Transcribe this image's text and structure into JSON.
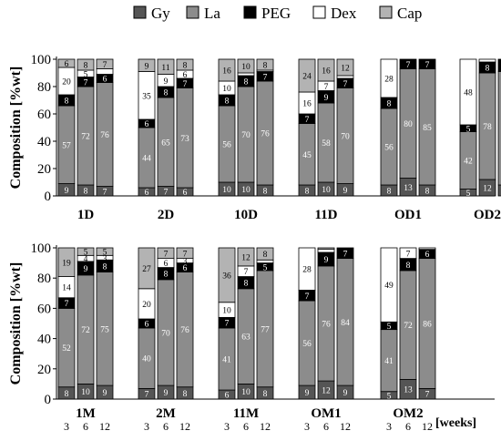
{
  "legend": [
    {
      "label": "Gy",
      "color": "#555555"
    },
    {
      "label": "La",
      "color": "#8c8c8c"
    },
    {
      "label": "PEG",
      "color": "#000000"
    },
    {
      "label": "Dex",
      "color": "#ffffff"
    },
    {
      "label": "Cap",
      "color": "#b3b3b3"
    }
  ],
  "weeks_label": "[weeks]",
  "week_ticks": [
    "3",
    "6",
    "12"
  ],
  "chart_data": [
    {
      "type": "bar",
      "stacked": true,
      "ylabel": "Composition  [%wt]",
      "ylim": [
        0,
        100
      ],
      "yticks": [
        0,
        20,
        40,
        60,
        80,
        100
      ],
      "series_order": [
        "Gy",
        "La",
        "PEG",
        "Dex",
        "Cap"
      ],
      "groups": [
        {
          "label": "1D",
          "bars": [
            {
              "week": "3",
              "values": [
                9,
                57,
                8,
                20,
                6
              ],
              "labels": [
                "9",
                "57",
                "8",
                "20",
                "6"
              ]
            },
            {
              "week": "6",
              "values": [
                8,
                72,
                7,
                5,
                8
              ],
              "labels": [
                "8",
                "72",
                "7",
                "5",
                "8"
              ]
            },
            {
              "week": "12",
              "values": [
                7,
                76,
                6,
                4,
                7
              ],
              "labels": [
                "7",
                "76",
                "6",
                "",
                "7"
              ]
            }
          ]
        },
        {
          "label": "2D",
          "bars": [
            {
              "week": "3",
              "values": [
                6,
                44,
                6,
                35,
                9
              ],
              "labels": [
                "6",
                "44",
                "6",
                "35",
                "9"
              ]
            },
            {
              "week": "6",
              "values": [
                7,
                65,
                8,
                9,
                11
              ],
              "labels": [
                "7",
                "65",
                "8",
                "9",
                "11"
              ]
            },
            {
              "week": "12",
              "values": [
                6,
                73,
                7,
                6,
                8
              ],
              "labels": [
                "6",
                "73",
                "7",
                "6",
                "8"
              ]
            }
          ]
        },
        {
          "label": "10D",
          "bars": [
            {
              "week": "3",
              "values": [
                10,
                56,
                8,
                10,
                16
              ],
              "labels": [
                "10",
                "56",
                "8",
                "10",
                "16"
              ]
            },
            {
              "week": "6",
              "values": [
                10,
                70,
                8,
                2,
                10
              ],
              "labels": [
                "10",
                "70",
                "8",
                "",
                "10"
              ]
            },
            {
              "week": "12",
              "values": [
                8,
                76,
                7,
                1,
                8
              ],
              "labels": [
                "8",
                "76",
                "7",
                "",
                "8"
              ]
            }
          ]
        },
        {
          "label": "11D",
          "bars": [
            {
              "week": "3",
              "values": [
                8,
                45,
                7,
                16,
                24
              ],
              "labels": [
                "8",
                "45",
                "7",
                "16",
                "24"
              ]
            },
            {
              "week": "6",
              "values": [
                10,
                58,
                9,
                7,
                16
              ],
              "labels": [
                "10",
                "58",
                "9",
                "7",
                "16"
              ]
            },
            {
              "week": "12",
              "values": [
                9,
                70,
                7,
                2,
                12
              ],
              "labels": [
                "9",
                "70",
                "7",
                "",
                "12"
              ]
            }
          ]
        },
        {
          "label": "OD1",
          "bars": [
            {
              "week": "3",
              "values": [
                8,
                56,
                8,
                28,
                0
              ],
              "labels": [
                "8",
                "56",
                "8",
                "28",
                ""
              ]
            },
            {
              "week": "6",
              "values": [
                13,
                80,
                7,
                0,
                0
              ],
              "labels": [
                "13",
                "80",
                "7",
                "",
                ""
              ]
            },
            {
              "week": "12",
              "values": [
                8,
                85,
                7,
                0,
                0
              ],
              "labels": [
                "8",
                "85",
                "7",
                "",
                ""
              ]
            }
          ]
        },
        {
          "label": "OD2",
          "bars": [
            {
              "week": "3",
              "values": [
                5,
                42,
                5,
                48,
                0
              ],
              "labels": [
                "5",
                "42",
                "5",
                "48",
                ""
              ]
            },
            {
              "week": "6",
              "values": [
                12,
                78,
                8,
                2,
                0
              ],
              "labels": [
                "12",
                "78",
                "8",
                "",
                ""
              ]
            },
            {
              "week": "12",
              "values": [
                8,
                83,
                9,
                0,
                0
              ],
              "labels": [
                "8",
                "83",
                "",
                "",
                ""
              ]
            }
          ]
        }
      ]
    },
    {
      "type": "bar",
      "stacked": true,
      "ylabel": "Composition  [%wt]",
      "ylim": [
        0,
        100
      ],
      "yticks": [
        0,
        20,
        40,
        60,
        80,
        100
      ],
      "series_order": [
        "Gy",
        "La",
        "PEG",
        "Dex",
        "Cap"
      ],
      "groups": [
        {
          "label": "1M",
          "bars": [
            {
              "week": "3",
              "values": [
                8,
                52,
                7,
                14,
                19
              ],
              "labels": [
                "8",
                "52",
                "7",
                "14",
                "19"
              ]
            },
            {
              "week": "6",
              "values": [
                10,
                72,
                9,
                4,
                5
              ],
              "labels": [
                "10",
                "72",
                "9",
                "4",
                "5"
              ]
            },
            {
              "week": "12",
              "values": [
                9,
                75,
                8,
                3,
                5
              ],
              "labels": [
                "9",
                "75",
                "8",
                "3",
                "5"
              ]
            }
          ]
        },
        {
          "label": "2M",
          "bars": [
            {
              "week": "3",
              "values": [
                7,
                40,
                6,
                20,
                27
              ],
              "labels": [
                "7",
                "40",
                "6",
                "20",
                "27"
              ]
            },
            {
              "week": "6",
              "values": [
                9,
                70,
                8,
                6,
                7
              ],
              "labels": [
                "9",
                "70",
                "8",
                "6",
                "7"
              ]
            },
            {
              "week": "12",
              "values": [
                8,
                76,
                6,
                3,
                7
              ],
              "labels": [
                "8",
                "76",
                "6",
                "3",
                "7"
              ]
            }
          ]
        },
        {
          "label": "11M",
          "bars": [
            {
              "week": "3",
              "values": [
                6,
                41,
                7,
                10,
                36
              ],
              "labels": [
                "6",
                "41",
                "7",
                "10",
                "36"
              ]
            },
            {
              "week": "6",
              "values": [
                10,
                63,
                8,
                7,
                12
              ],
              "labels": [
                "10",
                "63",
                "8",
                "7",
                "12"
              ]
            },
            {
              "week": "12",
              "values": [
                8,
                77,
                5,
                2,
                8
              ],
              "labels": [
                "8",
                "77",
                "5",
                "",
                "8"
              ]
            }
          ]
        },
        {
          "label": "OM1",
          "bars": [
            {
              "week": "3",
              "values": [
                9,
                56,
                7,
                28,
                0
              ],
              "labels": [
                "9",
                "56",
                "7",
                "28",
                ""
              ]
            },
            {
              "week": "6",
              "values": [
                12,
                76,
                9,
                2,
                1
              ],
              "labels": [
                "12",
                "76",
                "9",
                "",
                ""
              ]
            },
            {
              "week": "12",
              "values": [
                9,
                84,
                7,
                0,
                0
              ],
              "labels": [
                "9",
                "84",
                "7",
                "",
                ""
              ]
            }
          ]
        },
        {
          "label": "OM2",
          "bars": [
            {
              "week": "3",
              "values": [
                5,
                41,
                5,
                49,
                0
              ],
              "labels": [
                "5",
                "41",
                "5",
                "49",
                ""
              ]
            },
            {
              "week": "6",
              "values": [
                13,
                72,
                8,
                7,
                0
              ],
              "labels": [
                "13",
                "72",
                "8",
                "7",
                ""
              ]
            },
            {
              "week": "12",
              "values": [
                7,
                86,
                6,
                1,
                0
              ],
              "labels": [
                "7",
                "86",
                "6",
                "",
                ""
              ]
            }
          ]
        }
      ]
    }
  ]
}
